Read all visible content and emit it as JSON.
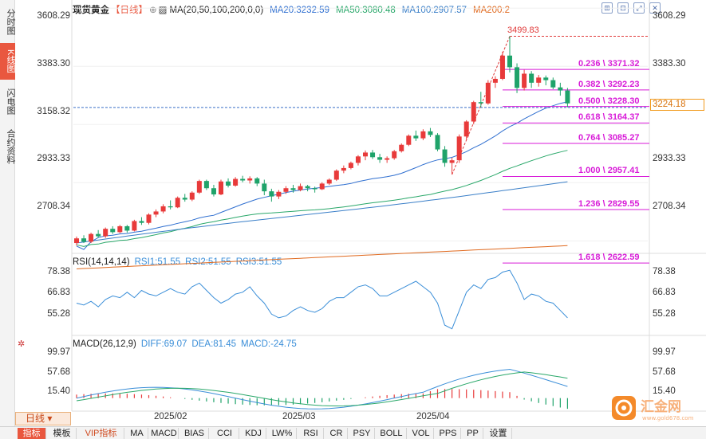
{
  "left_tabs": [
    "分时图",
    "K线图",
    "闪电图",
    "合约资料"
  ],
  "legend": {
    "name": "现货黄金",
    "period": "【日线】",
    "ma_label": "MA(20,50,100,200,0,0)",
    "ma20": "MA20:3232.59",
    "ma50": "MA50:3080.48",
    "ma100": "MA100:2907.57",
    "ma200": "MA200:2"
  },
  "price_axis": [
    "3608.29",
    "3383.30",
    "3158.32",
    "2933.33",
    "2708.34"
  ],
  "current_price": "3224.18",
  "high_label": "3499.83",
  "fib_levels": [
    "0.236 \\ 3371.32",
    "0.382 \\ 3292.23",
    "0.500 \\ 3228.30",
    "0.618 \\ 3164.37",
    "0.764 \\ 3085.27",
    "1.000 \\ 2957.41",
    "1.236 \\ 2829.55",
    "1.618 \\ 2622.59"
  ],
  "rsi": {
    "label": "RSI(14,14,14)",
    "rsi1": "RSI1:51.55",
    "rsi2": "RSI2:51.55",
    "rsi3": "RSI3:51.55",
    "axis": [
      "78.38",
      "66.83",
      "55.28"
    ]
  },
  "macd": {
    "label": "MACD(26,12,9)",
    "diff": "DIFF:69.07",
    "dea": "DEA:81.45",
    "macd": "MACD:-24.75",
    "axis": [
      "99.97",
      "57.68",
      "15.40"
    ]
  },
  "period_button": "日线",
  "dates": [
    "2025/02",
    "2025/03",
    "2025/04"
  ],
  "bottom_tabs": [
    "指标",
    "模板",
    "VIP指标",
    "MA",
    "MACD",
    "BIAS",
    "CCI",
    "KDJ",
    "LW%",
    "RSI",
    "CR",
    "PSY",
    "BOLL",
    "VOL",
    "PPS",
    "PP",
    "设置"
  ],
  "logo": {
    "brand": "汇金网",
    "url": "www.gold678.com"
  },
  "colors": {
    "up": "#e83a3a",
    "down": "#1fa36a",
    "ma20": "#2f6fd0",
    "ma50": "#2aa86a",
    "ma100": "#3a7fc8",
    "ma200": "#e0691e",
    "fib": "#d81ad8"
  },
  "chart_data": {
    "type": "candlestick",
    "price_range": [
      2660,
      3640
    ],
    "candles": [
      [
        2700,
        2725,
        2690,
        2718
      ],
      [
        2718,
        2730,
        2700,
        2705
      ],
      [
        2705,
        2740,
        2700,
        2735
      ],
      [
        2735,
        2750,
        2720,
        2726
      ],
      [
        2726,
        2760,
        2720,
        2755
      ],
      [
        2755,
        2765,
        2735,
        2742
      ],
      [
        2742,
        2770,
        2738,
        2765
      ],
      [
        2765,
        2770,
        2740,
        2748
      ],
      [
        2748,
        2790,
        2745,
        2785
      ],
      [
        2785,
        2800,
        2770,
        2778
      ],
      [
        2778,
        2815,
        2772,
        2810
      ],
      [
        2810,
        2830,
        2800,
        2822
      ],
      [
        2822,
        2850,
        2815,
        2842
      ],
      [
        2842,
        2865,
        2830,
        2838
      ],
      [
        2838,
        2880,
        2835,
        2875
      ],
      [
        2875,
        2890,
        2860,
        2868
      ],
      [
        2868,
        2900,
        2862,
        2895
      ],
      [
        2895,
        2945,
        2890,
        2940
      ],
      [
        2940,
        2945,
        2905,
        2912
      ],
      [
        2912,
        2925,
        2880,
        2888
      ],
      [
        2888,
        2945,
        2885,
        2938
      ],
      [
        2938,
        2950,
        2915,
        2922
      ],
      [
        2922,
        2955,
        2918,
        2948
      ],
      [
        2948,
        2960,
        2935,
        2942
      ],
      [
        2942,
        2958,
        2930,
        2950
      ],
      [
        2950,
        2955,
        2920,
        2930
      ],
      [
        2930,
        2945,
        2885,
        2900
      ],
      [
        2900,
        2910,
        2860,
        2880
      ],
      [
        2880,
        2905,
        2870,
        2898
      ],
      [
        2898,
        2920,
        2890,
        2912
      ],
      [
        2912,
        2925,
        2895,
        2905
      ],
      [
        2905,
        2930,
        2900,
        2920
      ],
      [
        2920,
        2925,
        2900,
        2912
      ],
      [
        2912,
        2918,
        2895,
        2908
      ],
      [
        2908,
        2935,
        2905,
        2930
      ],
      [
        2930,
        2950,
        2925,
        2945
      ],
      [
        2945,
        2985,
        2940,
        2980
      ],
      [
        2980,
        3000,
        2970,
        2990
      ],
      [
        2990,
        3015,
        2985,
        3010
      ],
      [
        3010,
        3040,
        3000,
        3035
      ],
      [
        3035,
        3058,
        3020,
        3050
      ],
      [
        3050,
        3060,
        3025,
        3032
      ],
      [
        3032,
        3045,
        3010,
        3022
      ],
      [
        3022,
        3035,
        3010,
        3028
      ],
      [
        3028,
        3060,
        3022,
        3055
      ],
      [
        3055,
        3085,
        3050,
        3080
      ],
      [
        3080,
        3120,
        3075,
        3115
      ],
      [
        3115,
        3135,
        3095,
        3105
      ],
      [
        3105,
        3140,
        3098,
        3132
      ],
      [
        3132,
        3145,
        3110,
        3118
      ],
      [
        3118,
        3125,
        3055,
        3062
      ],
      [
        3062,
        3075,
        2995,
        3010
      ],
      [
        3010,
        3030,
        2965,
        3020
      ],
      [
        3020,
        3120,
        3010,
        3112
      ],
      [
        3112,
        3175,
        3100,
        3170
      ],
      [
        3170,
        3250,
        3160,
        3245
      ],
      [
        3245,
        3285,
        3225,
        3240
      ],
      [
        3240,
        3330,
        3235,
        3320
      ],
      [
        3320,
        3345,
        3300,
        3335
      ],
      [
        3335,
        3440,
        3330,
        3425
      ],
      [
        3425,
        3500,
        3360,
        3380
      ],
      [
        3380,
        3395,
        3280,
        3300
      ],
      [
        3300,
        3370,
        3290,
        3355
      ],
      [
        3355,
        3365,
        3300,
        3320
      ],
      [
        3320,
        3350,
        3305,
        3340
      ],
      [
        3340,
        3348,
        3310,
        3330
      ],
      [
        3330,
        3340,
        3295,
        3302
      ],
      [
        3302,
        3320,
        3270,
        3290
      ],
      [
        3290,
        3300,
        3225,
        3240
      ]
    ]
  }
}
